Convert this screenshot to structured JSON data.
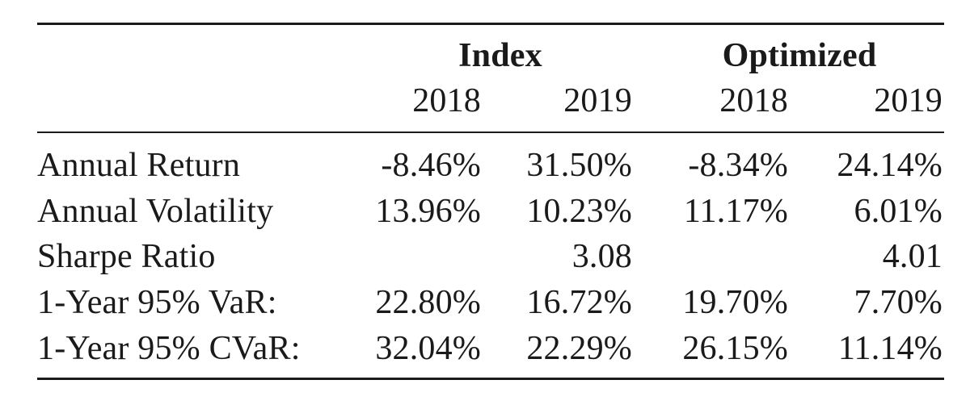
{
  "table": {
    "group_headers": [
      "Index",
      "Optimized"
    ],
    "year_headers": [
      "2018",
      "2019",
      "2018",
      "2019"
    ],
    "rows": [
      {
        "label": "Annual Return",
        "values": [
          "-8.46%",
          "31.50%",
          "-8.34%",
          "24.14%"
        ]
      },
      {
        "label": "Annual Volatility",
        "values": [
          "13.96%",
          "10.23%",
          "11.17%",
          "6.01%"
        ]
      },
      {
        "label": "Sharpe Ratio",
        "values": [
          "",
          "3.08",
          "",
          "4.01"
        ]
      },
      {
        "label": "1-Year 95% VaR:",
        "values": [
          "22.80%",
          "16.72%",
          "19.70%",
          "7.70%"
        ]
      },
      {
        "label": "1-Year 95% CVaR:",
        "values": [
          "32.04%",
          "22.29%",
          "26.15%",
          "11.14%"
        ]
      }
    ]
  }
}
